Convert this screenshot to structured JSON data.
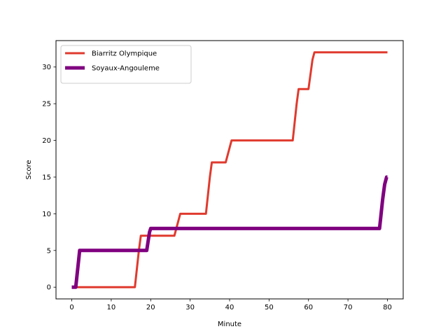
{
  "chart_data": {
    "type": "line",
    "title": "",
    "xlabel": "Minute",
    "ylabel": "Score",
    "xlim": [
      -4,
      84
    ],
    "ylim": [
      -1.6,
      33.6
    ],
    "xticks": [
      0,
      10,
      20,
      30,
      40,
      50,
      60,
      70,
      80
    ],
    "yticks": [
      0,
      5,
      10,
      15,
      20,
      25,
      30
    ],
    "grid": false,
    "legend_position": "upper-left",
    "series": [
      {
        "name": "Biarritz Olympique",
        "color": "#e03a2e",
        "line_width": 3,
        "x": [
          0,
          16,
          17,
          17.5,
          18,
          26,
          27,
          27.5,
          34,
          35,
          35.5,
          39,
          40,
          40.5,
          56,
          57,
          57.5,
          60,
          61,
          61.5,
          80
        ],
        "y": [
          0,
          0,
          5,
          7,
          7,
          7,
          9,
          10,
          10,
          15,
          17,
          17,
          19,
          20,
          20,
          25,
          27,
          27,
          31,
          32,
          32
        ]
      },
      {
        "name": "Soyaux-Angouleme",
        "color": "#800080",
        "line_width": 5,
        "x": [
          0,
          1,
          1.8,
          2,
          19,
          19.7,
          20,
          78,
          78.8,
          79.3,
          79.8,
          80
        ],
        "y": [
          0,
          0,
          4,
          5,
          5,
          7.5,
          8,
          8,
          12,
          14,
          15,
          15
        ]
      }
    ]
  }
}
